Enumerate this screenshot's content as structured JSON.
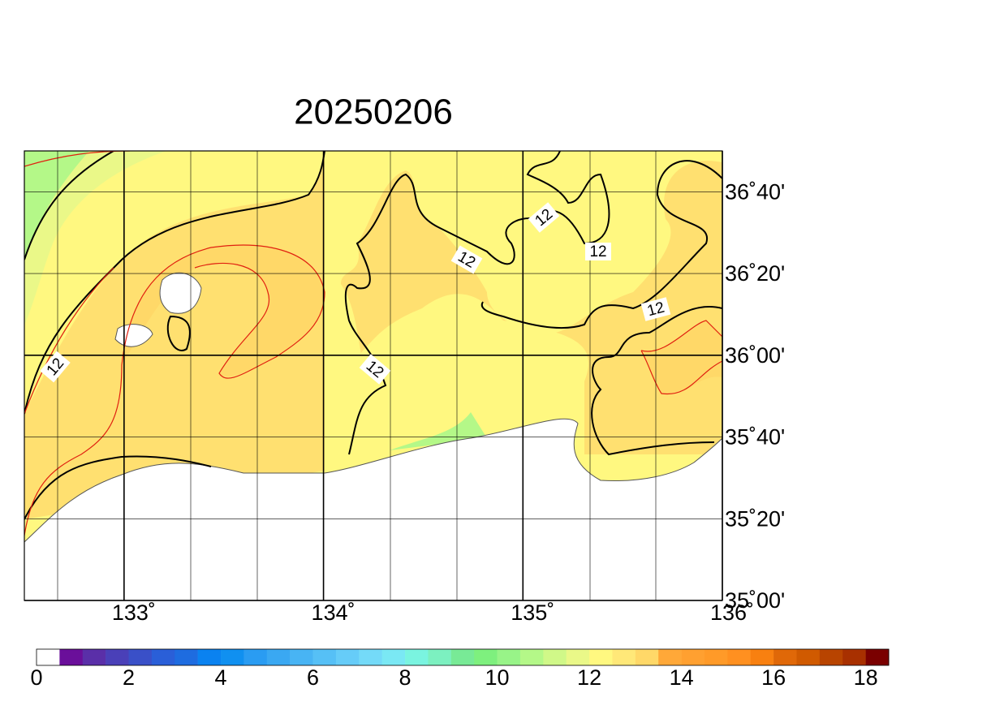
{
  "title": "20250206",
  "map": {
    "lonlim": [
      132.5,
      136
    ],
    "latlim": [
      35,
      36.8333
    ],
    "lon_ticks": [
      {
        "value": 133,
        "label": "133˚"
      },
      {
        "value": 134,
        "label": "134˚"
      },
      {
        "value": 135,
        "label": "135˚"
      },
      {
        "value": 136,
        "label": "136˚"
      }
    ],
    "lat_ticks": [
      {
        "value": 35,
        "label": "35˚00'"
      },
      {
        "value": 35.3333,
        "label": "35˚20'"
      },
      {
        "value": 35.6667,
        "label": "35˚40'"
      },
      {
        "value": 36,
        "label": "36˚00'"
      },
      {
        "value": 36.3333,
        "label": "36˚20'"
      },
      {
        "value": 36.6667,
        "label": "36˚40'"
      }
    ],
    "contour_labels": [
      "12",
      "12",
      "12",
      "12",
      "12",
      "12"
    ]
  },
  "colorbar": {
    "range": [
      0,
      18.5
    ],
    "ticks": [
      0,
      2,
      4,
      6,
      8,
      10,
      12,
      14,
      16,
      18
    ],
    "colors": [
      "#ffffff",
      "#6a0f9a",
      "#5a2fa8",
      "#4a40b8",
      "#3a50c8",
      "#2a5fd8",
      "#1e6ce0",
      "#0a82f0",
      "#1090f0",
      "#2a9cf2",
      "#3aa8f2",
      "#48b4f4",
      "#56c0f6",
      "#66ccf8",
      "#74daf8",
      "#7ae8f4",
      "#7af4e0",
      "#7cf0c0",
      "#78ea96",
      "#7ef07e",
      "#98f488",
      "#b4f888",
      "#d0f888",
      "#eaf888",
      "#fff880",
      "#ffe878",
      "#ffd868",
      "#ffa838",
      "#ffa030",
      "#ff9a28",
      "#ff9020",
      "#f88010",
      "#e06808",
      "#d05a00",
      "#b84400",
      "#a83000",
      "#7a0000"
    ]
  }
}
